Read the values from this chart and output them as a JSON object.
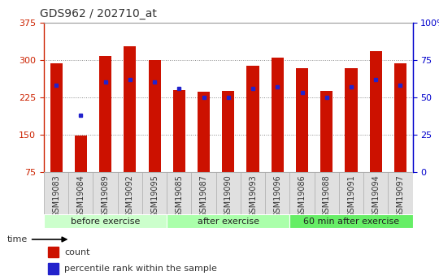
{
  "title": "GDS962 / 202710_at",
  "categories": [
    "GSM19083",
    "GSM19084",
    "GSM19089",
    "GSM19092",
    "GSM19095",
    "GSM19085",
    "GSM19087",
    "GSM19090",
    "GSM19093",
    "GSM19096",
    "GSM19086",
    "GSM19088",
    "GSM19091",
    "GSM19094",
    "GSM19097"
  ],
  "counts": [
    293,
    148,
    308,
    328,
    299,
    240,
    236,
    238,
    288,
    304,
    284,
    238,
    284,
    317,
    293
  ],
  "percentiles": [
    58,
    38,
    60,
    62,
    60,
    56,
    50,
    50,
    56,
    57,
    53,
    50,
    57,
    62,
    58
  ],
  "groups": [
    {
      "label": "before exercise",
      "start": 0,
      "end": 5,
      "color": "#ccffcc"
    },
    {
      "label": "after exercise",
      "start": 5,
      "end": 10,
      "color": "#aaffaa"
    },
    {
      "label": "60 min after exercise",
      "start": 10,
      "end": 15,
      "color": "#66ee66"
    }
  ],
  "ylim_left": [
    75,
    375
  ],
  "ylim_right": [
    0,
    100
  ],
  "yticks_left": [
    75,
    150,
    225,
    300,
    375
  ],
  "yticks_right": [
    0,
    25,
    50,
    75,
    100
  ],
  "bar_color": "#cc1100",
  "dot_color": "#2222cc",
  "title_color": "#333333",
  "left_axis_color": "#cc2200",
  "right_axis_color": "#0000cc",
  "grid_dotted_color": "#888888",
  "bg_color": "#ffffff",
  "legend_count_label": "count",
  "legend_pct_label": "percentile rank within the sample",
  "bar_width": 0.5,
  "group_label_fontsize": 8,
  "tick_fontsize": 7,
  "title_fontsize": 10
}
